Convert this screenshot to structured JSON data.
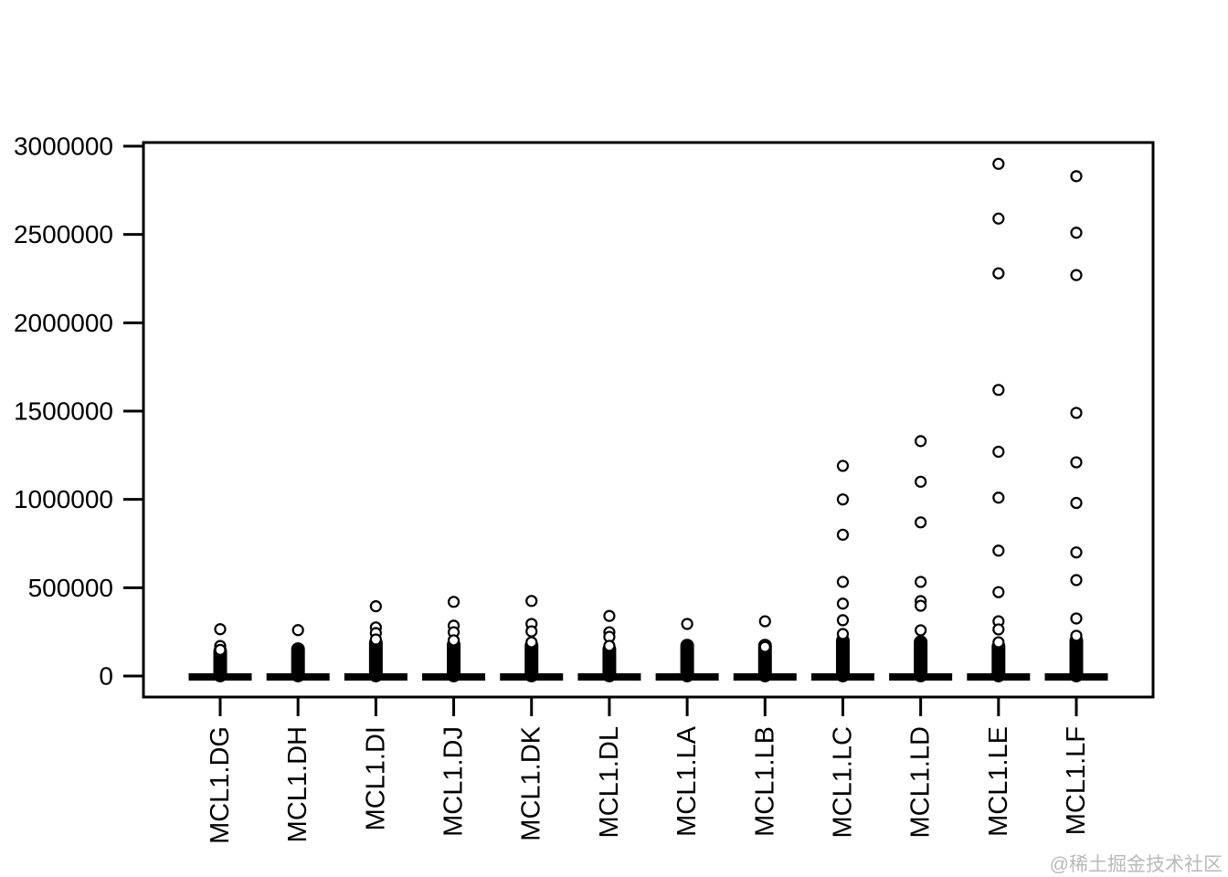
{
  "watermark": {
    "text": "@稀土掘金技术社区",
    "color": "#b9b9b9"
  },
  "colors": {
    "foreground": "#000000",
    "background": "#ffffff"
  },
  "chart_data": {
    "type": "boxplot",
    "title": "",
    "xlabel": "",
    "ylabel": "",
    "ylim": [
      0,
      3000000
    ],
    "yticks": [
      0,
      500000,
      1000000,
      1500000,
      2000000,
      2500000,
      3000000
    ],
    "ytick_labels": [
      "0",
      "500000",
      "1000000",
      "1500000",
      "2000000",
      "2500000",
      "3000000"
    ],
    "grid": false,
    "legend": "none",
    "frame": true,
    "categories": [
      "MCL1.DG",
      "MCL1.DH",
      "MCL1.DI",
      "MCL1.DJ",
      "MCL1.DK",
      "MCL1.DL",
      "MCL1.LA",
      "MCL1.LB",
      "MCL1.LC",
      "MCL1.LD",
      "MCL1.LE",
      "MCL1.LF"
    ],
    "series": [
      {
        "name": "MCL1.DG",
        "box_value": 0,
        "dense_cluster_top": 148000,
        "outliers": [
          265000,
          170000,
          148000
        ]
      },
      {
        "name": "MCL1.DH",
        "box_value": 0,
        "dense_cluster_top": 160000,
        "outliers": [
          260000
        ]
      },
      {
        "name": "MCL1.DI",
        "box_value": 0,
        "dense_cluster_top": 195000,
        "outliers": [
          395000,
          275000,
          243000,
          207000
        ]
      },
      {
        "name": "MCL1.DJ",
        "box_value": 0,
        "dense_cluster_top": 185000,
        "outliers": [
          420000,
          285000,
          248000,
          202000
        ]
      },
      {
        "name": "MCL1.DK",
        "box_value": 0,
        "dense_cluster_top": 180000,
        "outliers": [
          425000,
          295000,
          253000,
          191000
        ]
      },
      {
        "name": "MCL1.DL",
        "box_value": 0,
        "dense_cluster_top": 160000,
        "outliers": [
          340000,
          248000,
          222000,
          171000
        ]
      },
      {
        "name": "MCL1.LA",
        "box_value": 0,
        "dense_cluster_top": 180000,
        "outliers": [
          295000
        ]
      },
      {
        "name": "MCL1.LB",
        "box_value": 0,
        "dense_cluster_top": 180000,
        "outliers": [
          310000,
          165000
        ]
      },
      {
        "name": "MCL1.LC",
        "box_value": 0,
        "dense_cluster_top": 207000,
        "outliers": [
          1190000,
          1000000,
          800000,
          533000,
          410000,
          316000,
          238000
        ]
      },
      {
        "name": "MCL1.LD",
        "box_value": 0,
        "dense_cluster_top": 200000,
        "outliers": [
          1330000,
          1100000,
          870000,
          533000,
          424000,
          398000,
          259000
        ]
      },
      {
        "name": "MCL1.LE",
        "box_value": 0,
        "dense_cluster_top": 175000,
        "outliers": [
          2900000,
          2590000,
          2280000,
          1620000,
          1270000,
          1010000,
          710000,
          475000,
          310000,
          264000,
          191000
        ]
      },
      {
        "name": "MCL1.LF",
        "box_value": 0,
        "dense_cluster_top": 207000,
        "outliers": [
          2830000,
          2510000,
          2270000,
          1490000,
          1210000,
          980000,
          700000,
          543000,
          326000,
          228000
        ]
      }
    ]
  }
}
